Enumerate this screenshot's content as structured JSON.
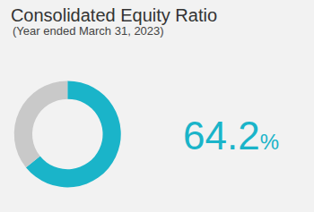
{
  "chart_data": {
    "type": "donut",
    "title": "Consolidated Equity Ratio",
    "subtitle": "(Year ended March 31, 2023)",
    "values": [
      64.2,
      35.8
    ],
    "colors": [
      "#1ab4c9",
      "#c9c9c9"
    ],
    "value_labels": [
      "64.2%",
      null
    ]
  }
}
